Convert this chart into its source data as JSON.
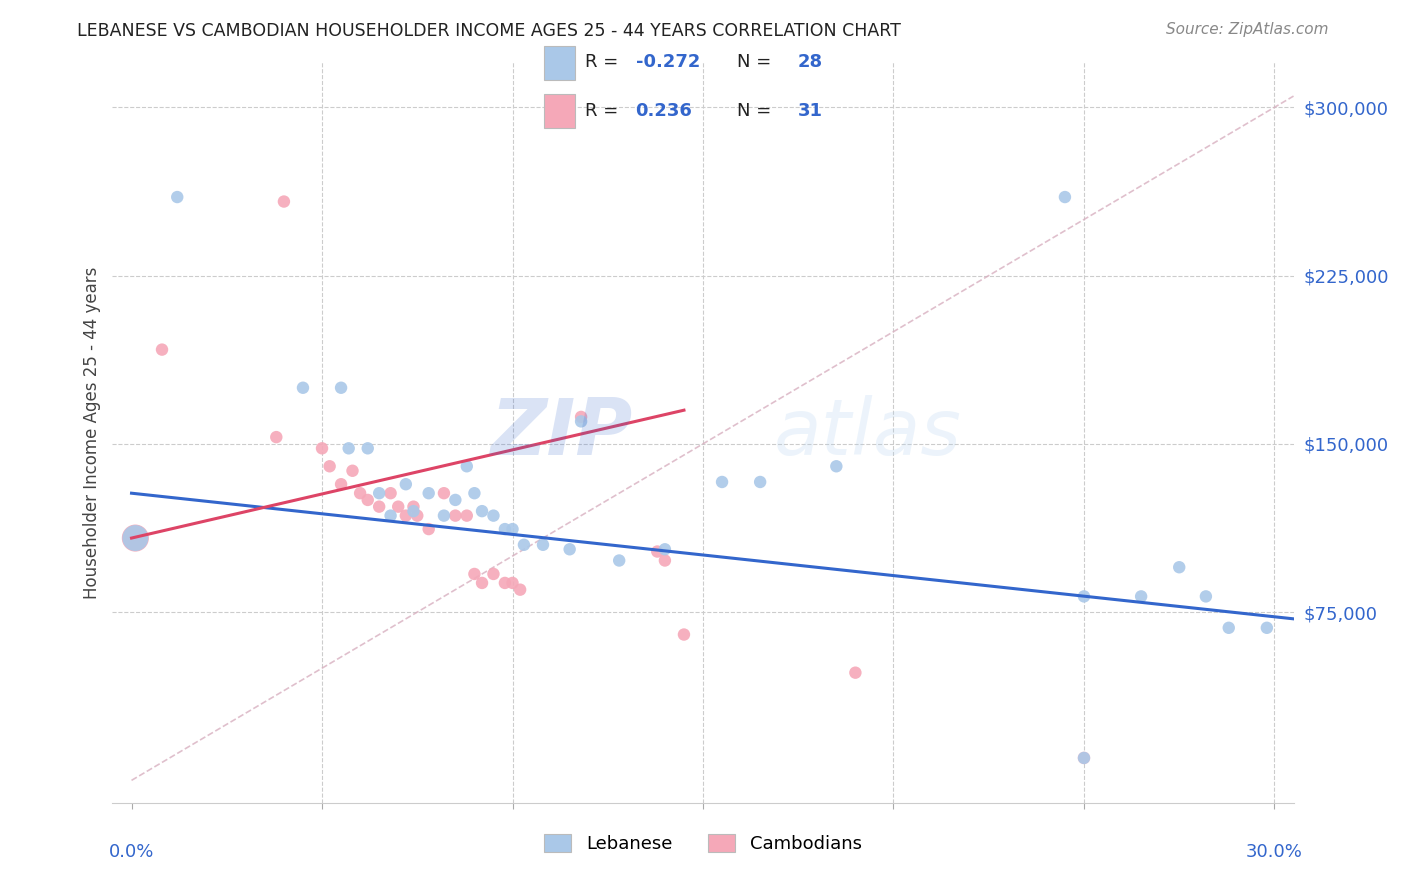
{
  "title": "LEBANESE VS CAMBODIAN HOUSEHOLDER INCOME AGES 25 - 44 YEARS CORRELATION CHART",
  "source": "Source: ZipAtlas.com",
  "ylabel": "Householder Income Ages 25 - 44 years",
  "ytick_labels": [
    "$75,000",
    "$150,000",
    "$225,000",
    "$300,000"
  ],
  "ytick_values": [
    75000,
    150000,
    225000,
    300000
  ],
  "ylim": [
    -10000,
    320000
  ],
  "xlim": [
    -0.005,
    0.305
  ],
  "legend_label_blue": "Lebanese",
  "legend_label_pink": "Cambodians",
  "blue_color": "#aac8e8",
  "pink_color": "#f5a8b8",
  "blue_line_color": "#3366cc",
  "pink_line_color": "#dd4466",
  "dashed_line_color": "#d8b0c0",
  "watermark_zip": "ZIP",
  "watermark_atlas": "atlas",
  "blue_line_x": [
    0.0,
    0.305
  ],
  "blue_line_y": [
    128000,
    72000
  ],
  "pink_line_x": [
    0.0,
    0.145
  ],
  "pink_line_y": [
    108000,
    165000
  ],
  "dash_line_x": [
    0.0,
    0.305
  ],
  "dash_line_y": [
    0,
    305000
  ],
  "blue_points": [
    [
      0.001,
      108000,
      350
    ],
    [
      0.012,
      260000,
      80
    ],
    [
      0.045,
      175000,
      80
    ],
    [
      0.055,
      175000,
      80
    ],
    [
      0.057,
      148000,
      80
    ],
    [
      0.062,
      148000,
      80
    ],
    [
      0.065,
      128000,
      80
    ],
    [
      0.068,
      118000,
      80
    ],
    [
      0.072,
      132000,
      80
    ],
    [
      0.074,
      120000,
      80
    ],
    [
      0.078,
      128000,
      80
    ],
    [
      0.082,
      118000,
      80
    ],
    [
      0.085,
      125000,
      80
    ],
    [
      0.088,
      140000,
      80
    ],
    [
      0.09,
      128000,
      80
    ],
    [
      0.092,
      120000,
      80
    ],
    [
      0.095,
      118000,
      80
    ],
    [
      0.098,
      112000,
      80
    ],
    [
      0.1,
      112000,
      80
    ],
    [
      0.103,
      105000,
      80
    ],
    [
      0.108,
      105000,
      80
    ],
    [
      0.115,
      103000,
      80
    ],
    [
      0.118,
      160000,
      80
    ],
    [
      0.128,
      98000,
      80
    ],
    [
      0.14,
      103000,
      80
    ],
    [
      0.155,
      133000,
      80
    ],
    [
      0.165,
      133000,
      80
    ],
    [
      0.185,
      140000,
      80
    ],
    [
      0.245,
      260000,
      80
    ],
    [
      0.25,
      82000,
      80
    ],
    [
      0.265,
      82000,
      80
    ],
    [
      0.275,
      95000,
      80
    ],
    [
      0.282,
      82000,
      80
    ],
    [
      0.288,
      68000,
      80
    ],
    [
      0.298,
      68000,
      80
    ],
    [
      0.25,
      10000,
      80
    ]
  ],
  "pink_points": [
    [
      0.001,
      108000,
      380
    ],
    [
      0.008,
      192000,
      80
    ],
    [
      0.038,
      153000,
      80
    ],
    [
      0.04,
      258000,
      80
    ],
    [
      0.05,
      148000,
      80
    ],
    [
      0.052,
      140000,
      80
    ],
    [
      0.055,
      132000,
      80
    ],
    [
      0.058,
      138000,
      80
    ],
    [
      0.06,
      128000,
      80
    ],
    [
      0.062,
      125000,
      80
    ],
    [
      0.065,
      122000,
      80
    ],
    [
      0.068,
      128000,
      80
    ],
    [
      0.07,
      122000,
      80
    ],
    [
      0.072,
      118000,
      80
    ],
    [
      0.074,
      122000,
      80
    ],
    [
      0.075,
      118000,
      80
    ],
    [
      0.078,
      112000,
      80
    ],
    [
      0.082,
      128000,
      80
    ],
    [
      0.085,
      118000,
      80
    ],
    [
      0.088,
      118000,
      80
    ],
    [
      0.09,
      92000,
      80
    ],
    [
      0.092,
      88000,
      80
    ],
    [
      0.095,
      92000,
      80
    ],
    [
      0.098,
      88000,
      80
    ],
    [
      0.1,
      88000,
      80
    ],
    [
      0.102,
      85000,
      80
    ],
    [
      0.118,
      162000,
      80
    ],
    [
      0.138,
      102000,
      80
    ],
    [
      0.14,
      98000,
      80
    ],
    [
      0.145,
      65000,
      80
    ],
    [
      0.19,
      48000,
      80
    ],
    [
      0.25,
      10000,
      80
    ]
  ]
}
